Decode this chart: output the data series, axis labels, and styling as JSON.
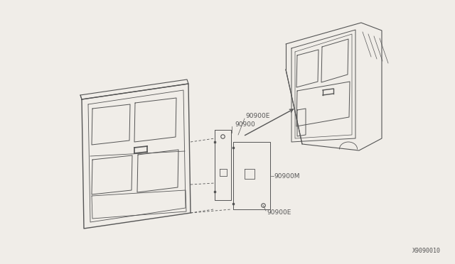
{
  "bg_color": "#f0ede8",
  "line_color": "#555555",
  "diagram_id": "X9090010",
  "label_90900": "90900",
  "label_90900E": "90900E",
  "label_90900M": "90900M"
}
